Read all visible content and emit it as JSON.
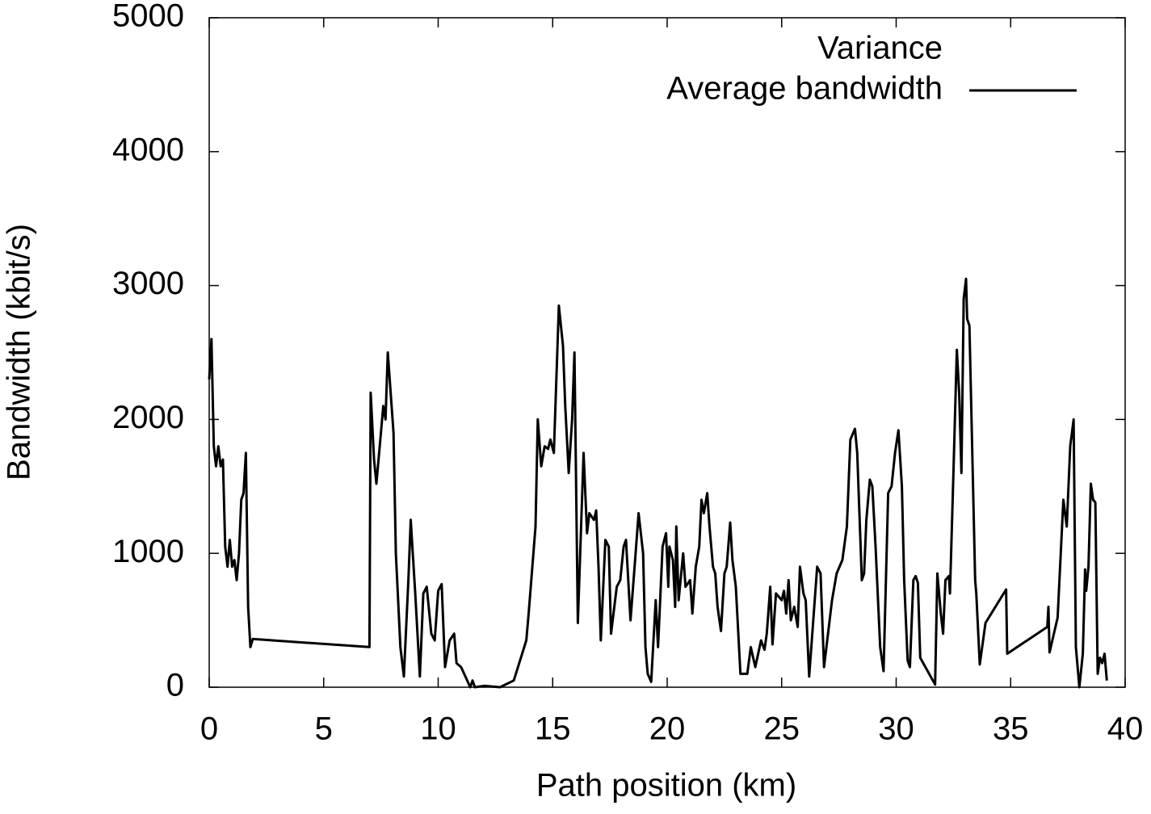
{
  "chart_data": {
    "type": "line",
    "xlabel": "Path position (km)",
    "ylabel": "Bandwidth (kbit/s)",
    "xlim": [
      0,
      40
    ],
    "xticks": [
      0,
      5,
      10,
      15,
      20,
      25,
      30,
      35,
      40
    ],
    "ylim": [
      0,
      5000
    ],
    "yticks": [
      0,
      1000,
      2000,
      3000,
      4000,
      5000
    ],
    "legend_position": "top-right",
    "legend": [
      {
        "name": "Variance"
      },
      {
        "name": "Average bandwidth",
        "color": "#000000"
      }
    ],
    "series": [
      {
        "name": "Average bandwidth",
        "color": "#000000",
        "x": [
          0,
          0.1,
          0.2,
          0.3,
          0.4,
          0.5,
          0.6,
          0.7,
          0.8,
          0.9,
          1.0,
          1.1,
          1.2,
          1.3,
          1.4,
          1.5,
          1.6,
          1.7,
          1.8,
          1.9,
          7.0,
          7.05,
          7.2,
          7.3,
          7.5,
          7.6,
          7.7,
          7.8,
          8.05,
          8.15,
          8.35,
          8.5,
          8.7,
          8.8,
          9.0,
          9.2,
          9.35,
          9.5,
          9.7,
          9.85,
          10.0,
          10.15,
          10.3,
          10.5,
          10.7,
          10.8,
          11.0,
          11.4,
          11.5,
          11.6,
          12.0,
          12.7,
          13.3,
          13.85,
          13.95,
          14.25,
          14.35,
          14.5,
          14.65,
          14.8,
          14.9,
          15.05,
          15.27,
          15.45,
          15.55,
          15.7,
          15.85,
          15.95,
          16.1,
          16.35,
          16.5,
          16.6,
          16.8,
          16.9,
          17.0,
          17.1,
          17.3,
          17.45,
          17.55,
          17.8,
          17.95,
          18.1,
          18.2,
          18.4,
          18.6,
          18.75,
          18.95,
          19.05,
          19.15,
          19.3,
          19.5,
          19.6,
          19.8,
          19.95,
          20.05,
          20.1,
          20.25,
          20.35,
          20.4,
          20.5,
          20.7,
          20.8,
          21.0,
          21.1,
          21.25,
          21.4,
          21.5,
          21.6,
          21.75,
          21.85,
          22.0,
          22.1,
          22.2,
          22.35,
          22.5,
          22.6,
          22.75,
          22.85,
          23.0,
          23.2,
          23.5,
          23.65,
          23.85,
          24.1,
          24.25,
          24.35,
          24.5,
          24.6,
          24.75,
          25.0,
          25.1,
          25.2,
          25.3,
          25.4,
          25.55,
          25.7,
          25.8,
          25.95,
          26.05,
          26.2,
          26.55,
          26.7,
          26.85,
          27.2,
          27.4,
          27.65,
          27.85,
          28.0,
          28.2,
          28.3,
          28.5,
          28.6,
          28.7,
          28.85,
          28.96,
          29.1,
          29.3,
          29.45,
          29.65,
          29.8,
          29.95,
          30.1,
          30.25,
          30.35,
          30.5,
          30.6,
          30.75,
          30.85,
          30.95,
          31.05,
          31.7,
          31.8,
          31.95,
          32.05,
          32.15,
          32.3,
          32.35,
          32.5,
          32.65,
          32.75,
          32.85,
          32.95,
          33.05,
          33.1,
          33.2,
          33.45,
          33.5,
          33.65,
          33.9,
          34.8,
          34.85,
          36.6,
          36.65,
          36.7,
          37.05,
          37.3,
          37.45,
          37.6,
          37.75,
          37.85,
          38.0,
          38.15,
          38.25,
          38.3,
          38.4,
          38.5,
          38.6,
          38.7,
          38.8,
          38.9,
          39.0,
          39.1,
          39.2
        ],
        "values": [
          2300,
          2600,
          1800,
          1650,
          1800,
          1650,
          1700,
          1050,
          900,
          1100,
          900,
          950,
          800,
          1000,
          1400,
          1450,
          1750,
          600,
          300,
          360,
          300,
          2200,
          1700,
          1520,
          1900,
          2100,
          2000,
          2500,
          1900,
          1000,
          300,
          80,
          800,
          1250,
          700,
          80,
          700,
          750,
          400,
          350,
          720,
          770,
          150,
          350,
          400,
          180,
          150,
          0,
          50,
          0,
          10,
          0,
          50,
          350,
          550,
          1200,
          2000,
          1650,
          1800,
          1780,
          1850,
          1750,
          2850,
          2550,
          2100,
          1600,
          2000,
          2500,
          480,
          1750,
          1150,
          1300,
          1250,
          1320,
          900,
          350,
          1100,
          1050,
          400,
          750,
          800,
          1050,
          1100,
          500,
          950,
          1300,
          1000,
          300,
          100,
          40,
          650,
          300,
          1050,
          1150,
          750,
          1050,
          950,
          600,
          1200,
          650,
          1000,
          750,
          800,
          550,
          900,
          1050,
          1400,
          1300,
          1450,
          1200,
          900,
          850,
          600,
          420,
          850,
          900,
          1230,
          950,
          750,
          100,
          100,
          300,
          150,
          350,
          280,
          400,
          750,
          320,
          700,
          650,
          720,
          550,
          800,
          500,
          600,
          450,
          900,
          700,
          650,
          80,
          900,
          850,
          150,
          650,
          850,
          950,
          1200,
          1850,
          1930,
          1750,
          800,
          850,
          1250,
          1550,
          1500,
          1050,
          300,
          120,
          1450,
          1500,
          1750,
          1920,
          1500,
          800,
          200,
          150,
          800,
          830,
          780,
          220,
          20,
          850,
          550,
          400,
          800,
          830,
          700,
          1600,
          2520,
          2200,
          1600,
          2900,
          3050,
          2750,
          2700,
          800,
          700,
          170,
          480,
          730,
          250,
          450,
          600,
          260,
          520,
          1400,
          1200,
          1800,
          2000,
          300,
          0,
          250,
          880,
          720,
          900,
          1520,
          1400,
          1380,
          100,
          220,
          180,
          250,
          50
        ]
      }
    ]
  }
}
